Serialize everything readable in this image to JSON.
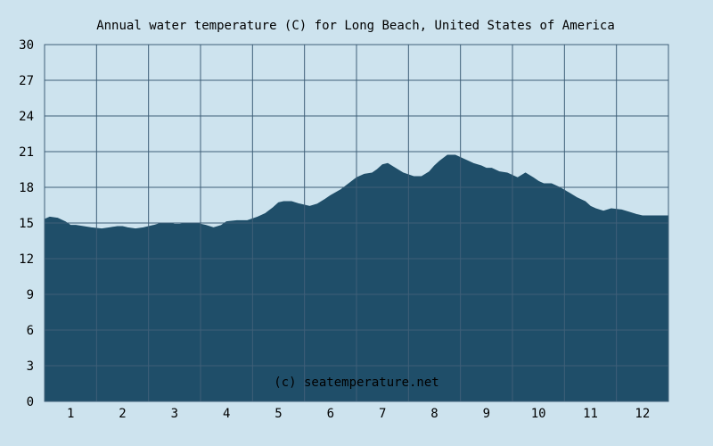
{
  "chart_data": {
    "type": "area",
    "title": "Annual water temperature (C) for Long Beach, United States of America",
    "xlabel": "",
    "ylabel": "",
    "ylim": [
      0,
      30
    ],
    "yticks": [
      0,
      3,
      6,
      9,
      12,
      15,
      18,
      21,
      24,
      27,
      30
    ],
    "xlim": [
      0.5,
      12.5
    ],
    "xticks": [
      1,
      2,
      3,
      4,
      5,
      6,
      7,
      8,
      9,
      10,
      11,
      12
    ],
    "grid": true,
    "watermark": "(c) seatemperature.net",
    "colors": {
      "fill": "#1f4e69",
      "plot_bg": "#cde3ee",
      "grid": "#3f5f78"
    },
    "series": [
      {
        "x": [
          0.5,
          0.6,
          0.75,
          0.9,
          1.0,
          1.1,
          1.25,
          1.4,
          1.6,
          1.75,
          1.9,
          2.0,
          2.1,
          2.25,
          2.4,
          2.6,
          2.75,
          2.9,
          3.0,
          3.1,
          3.25,
          3.4,
          3.6,
          3.75,
          3.9,
          4.0,
          4.2,
          4.4,
          4.6,
          4.75,
          4.9,
          5.0,
          5.1,
          5.25,
          5.4,
          5.6,
          5.75,
          5.9,
          6.0,
          6.2,
          6.35,
          6.5,
          6.65,
          6.8,
          6.9,
          7.0,
          7.1,
          7.25,
          7.4,
          7.6,
          7.75,
          7.9,
          8.0,
          8.1,
          8.25,
          8.4,
          8.6,
          8.75,
          8.9,
          9.0,
          9.1,
          9.25,
          9.4,
          9.6,
          9.75,
          9.9,
          10.0,
          10.1,
          10.25,
          10.4,
          10.6,
          10.75,
          10.9,
          11.0,
          11.1,
          11.25,
          11.4,
          11.6,
          11.75,
          11.9,
          12.0,
          12.1,
          12.25,
          12.5
        ],
        "values": [
          15.3,
          15.5,
          15.4,
          15.1,
          14.8,
          14.8,
          14.7,
          14.6,
          14.5,
          14.6,
          14.7,
          14.7,
          14.6,
          14.5,
          14.6,
          14.8,
          15.0,
          15.0,
          14.9,
          14.9,
          15.0,
          15.0,
          14.8,
          14.6,
          14.8,
          15.1,
          15.2,
          15.2,
          15.5,
          15.8,
          16.3,
          16.7,
          16.8,
          16.8,
          16.6,
          16.4,
          16.6,
          17.0,
          17.3,
          17.8,
          18.3,
          18.8,
          19.1,
          19.2,
          19.5,
          19.9,
          20.0,
          19.6,
          19.2,
          18.9,
          18.9,
          19.3,
          19.8,
          20.2,
          20.7,
          20.7,
          20.3,
          20.0,
          19.8,
          19.6,
          19.6,
          19.3,
          19.2,
          18.8,
          19.2,
          18.8,
          18.5,
          18.3,
          18.3,
          18.0,
          17.5,
          17.1,
          16.8,
          16.4,
          16.2,
          16.0,
          16.2,
          16.1,
          15.9,
          15.7,
          15.6,
          15.6,
          15.6,
          15.6
        ]
      }
    ]
  }
}
